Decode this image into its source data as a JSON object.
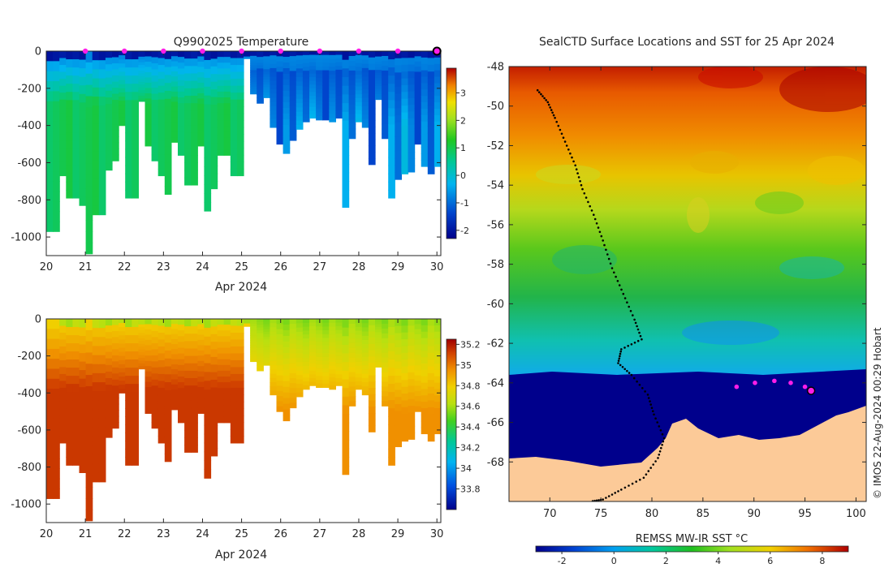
{
  "chart_data": [
    {
      "type": "heatmap",
      "title": "Q9902025  Temperature",
      "xlabel": "Apr 2024",
      "ylabel": "",
      "xlim": [
        20,
        30.1
      ],
      "ylim": [
        -1100,
        0
      ],
      "x_ticks": [
        "20",
        "21",
        "22",
        "23",
        "24",
        "25",
        "26",
        "27",
        "28",
        "29",
        "30"
      ],
      "y_ticks": [
        "0",
        "-200",
        "-400",
        "-600",
        "-800",
        "-1000"
      ],
      "colorbar": {
        "range": [
          -2.3,
          3.9
        ],
        "ticks": [
          "3",
          "2",
          "1",
          "0",
          "-1",
          "-2"
        ]
      },
      "marker_days": [
        20.9,
        21.9,
        22.9,
        23.9,
        24.9,
        25.9,
        26.9,
        27.9,
        28.9
      ],
      "current_day": 30.0,
      "profile_bottom_depths": [
        970,
        970,
        670,
        790,
        790,
        830,
        1090,
        880,
        880,
        640,
        590,
        400,
        790,
        790,
        270,
        510,
        590,
        670,
        770,
        490,
        560,
        720,
        720,
        510,
        860,
        740,
        560,
        560,
        670,
        670,
        40,
        230,
        280,
        250,
        410,
        500,
        550,
        480,
        420,
        380,
        360,
        370,
        370,
        380,
        360,
        840,
        470,
        380,
        410,
        610,
        260,
        470,
        790,
        690,
        660,
        650,
        500,
        620,
        660,
        620
      ]
    },
    {
      "type": "heatmap",
      "title": "",
      "xlabel": "Apr 2024",
      "ylabel": "",
      "xlim": [
        20,
        30.1
      ],
      "ylim": [
        -1100,
        0
      ],
      "x_ticks": [
        "20",
        "21",
        "22",
        "23",
        "24",
        "25",
        "26",
        "27",
        "28",
        "29",
        "30"
      ],
      "y_ticks": [
        "0",
        "-200",
        "-400",
        "-600",
        "-800",
        "-1000"
      ],
      "colorbar": {
        "range": [
          33.6,
          35.25
        ],
        "ticks": [
          "35.2",
          "35",
          "34.8",
          "34.6",
          "34.4",
          "34.2",
          "34",
          "33.8"
        ]
      }
    },
    {
      "type": "heatmap",
      "title": "SealCTD Surface Locations and SST for 25 Apr 2024",
      "xlabel": "",
      "ylabel": "",
      "xlim": [
        66,
        101
      ],
      "ylim": [
        -70,
        -48
      ],
      "x_ticks": [
        "70",
        "75",
        "80",
        "85",
        "90",
        "95",
        "100"
      ],
      "y_ticks": [
        "-48",
        "-50",
        "-52",
        "-54",
        "-56",
        "-58",
        "-60",
        "-62",
        "-64",
        "-66",
        "-68"
      ],
      "colorbar_label": "REMSS MW-IR SST °C",
      "colorbar": {
        "range": [
          -3,
          9
        ],
        "ticks": [
          "-2",
          "0",
          "2",
          "4",
          "6",
          "8"
        ]
      },
      "track": [
        [
          68.8,
          -49.2
        ],
        [
          69.8,
          -49.8
        ],
        [
          70.5,
          -50.6
        ],
        [
          71.5,
          -51.8
        ],
        [
          72.5,
          -53.0
        ],
        [
          73.2,
          -54.2
        ],
        [
          74.3,
          -55.5
        ],
        [
          75.2,
          -56.8
        ],
        [
          76.1,
          -58.2
        ],
        [
          77.2,
          -59.5
        ],
        [
          78.3,
          -60.8
        ],
        [
          79.0,
          -61.8
        ],
        [
          77.0,
          -62.3
        ],
        [
          76.7,
          -63.0
        ],
        [
          78.0,
          -63.6
        ],
        [
          79.6,
          -64.6
        ],
        [
          80.2,
          -65.6
        ],
        [
          81.2,
          -66.8
        ],
        [
          80.6,
          -67.8
        ],
        [
          79.2,
          -68.8
        ],
        [
          77.0,
          -69.4
        ],
        [
          75.2,
          -69.9
        ],
        [
          74.0,
          -70.0
        ]
      ],
      "highlight_points": [
        [
          88.3,
          -64.2
        ],
        [
          90.1,
          -64.0
        ],
        [
          92.0,
          -63.9
        ],
        [
          93.6,
          -64.0
        ],
        [
          95.0,
          -64.2
        ]
      ],
      "current_location": [
        95.6,
        -64.4
      ]
    }
  ],
  "watermark": "© IMOS 22-Aug-2024 00:29 Hobart",
  "colors": {
    "ice_mask": "#000a8c",
    "land": "#fcca98",
    "marker": "#ff1ee8",
    "axis": "#262626"
  }
}
